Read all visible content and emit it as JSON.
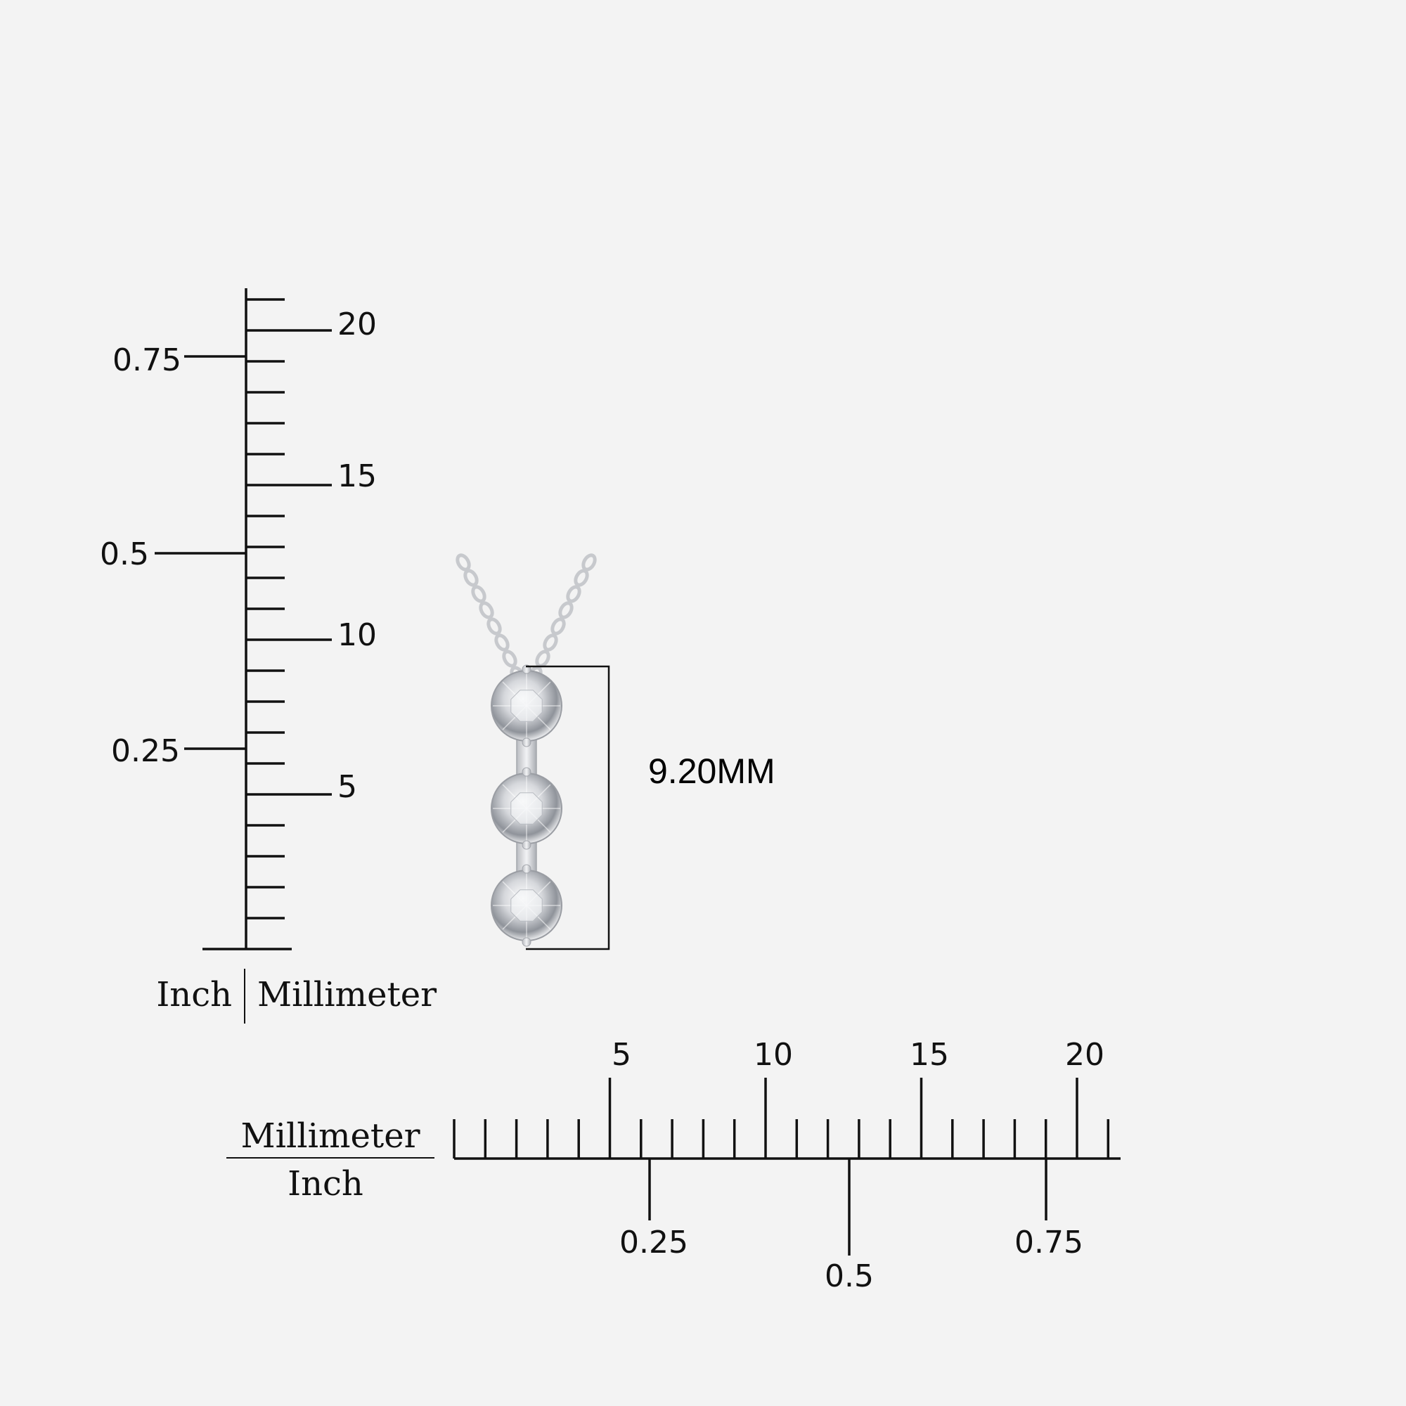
{
  "vertical_ruler": {
    "mm_labels": [
      "5",
      "10",
      "15",
      "20"
    ],
    "inch_labels": [
      "0.25",
      "0.5",
      "0.75"
    ],
    "unit_left": "Inch",
    "unit_right": "Millimeter"
  },
  "horizontal_ruler": {
    "mm_labels": [
      "5",
      "10",
      "15",
      "20"
    ],
    "inch_labels": [
      "0.25",
      "0.5",
      "0.75"
    ],
    "unit_top": "Millimeter",
    "unit_bottom": "Inch"
  },
  "pendant": {
    "dimension_label": "9.20MM",
    "stone_count": 3,
    "metal_color": "#c9cbcf",
    "stone_color": "#e6e7ea"
  },
  "colors": {
    "background": "#f3f3f3",
    "ruler_ink": "#111111"
  }
}
